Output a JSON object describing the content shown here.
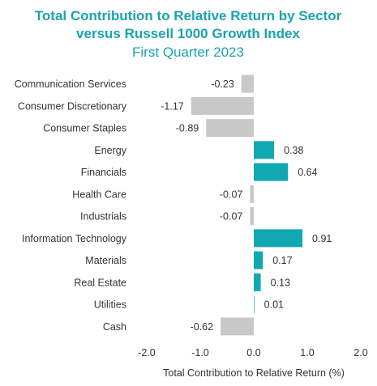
{
  "colors": {
    "title": "#1aa3ad",
    "positive": "#10a8b3",
    "negative": "#c8c8c8",
    "text": "#333333"
  },
  "chart_data": {
    "type": "bar",
    "orientation": "horizontal",
    "title_lines": [
      "Total Contribution to Relative Return by Sector",
      "versus Russell 1000 Growth Index"
    ],
    "subtitle": "First Quarter 2023",
    "categories": [
      "Communication Services",
      "Consumer Discretionary",
      "Consumer Staples",
      "Energy",
      "Financials",
      "Health Care",
      "Industrials",
      "Information Technology",
      "Materials",
      "Real Estate",
      "Utilities",
      "Cash"
    ],
    "values": [
      -0.23,
      -1.17,
      -0.89,
      0.38,
      0.64,
      -0.07,
      -0.07,
      0.91,
      0.17,
      0.13,
      0.01,
      -0.62
    ],
    "value_labels": [
      "-0.23",
      "-1.17",
      "-0.89",
      "0.38",
      "0.64",
      "-0.07",
      "-0.07",
      "0.91",
      "0.17",
      "0.13",
      "0.01",
      "-0.62"
    ],
    "xlim": [
      -2.0,
      2.0
    ],
    "xticks": [
      -2.0,
      -1.0,
      0.0,
      1.0,
      2.0
    ],
    "xtick_labels": [
      "-2.0",
      "-1.0",
      "0.0",
      "1.0",
      "2.0"
    ],
    "xlabel": "Total Contribution to Relative Return (%)",
    "grid": false,
    "legend": "none"
  }
}
